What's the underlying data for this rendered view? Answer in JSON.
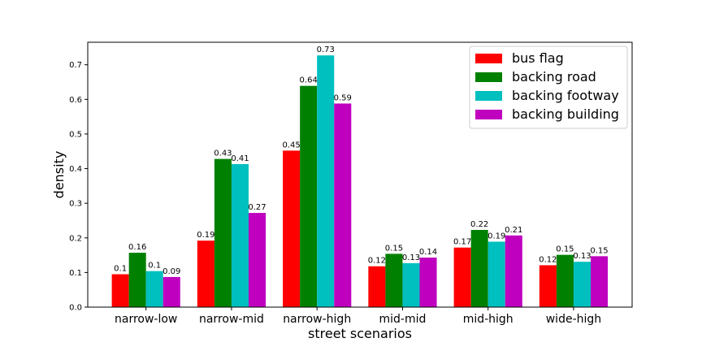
{
  "chart_data": {
    "type": "bar",
    "xlabel": "street scenarios",
    "ylabel": "density",
    "ylim": [
      0,
      0.765
    ],
    "yticks": [
      "0.0",
      "0.1",
      "0.2",
      "0.3",
      "0.4",
      "0.5",
      "0.6",
      "0.7"
    ],
    "grid": false,
    "legend_position": "top-right",
    "categories": [
      "narrow-low",
      "narrow-mid",
      "narrow-high",
      "mid-mid",
      "mid-high",
      "wide-high"
    ],
    "series": [
      {
        "name": "bus flag",
        "color": "#ff0000",
        "values": [
          0.095,
          0.192,
          0.452,
          0.118,
          0.172,
          0.121
        ],
        "labels": [
          "0.1",
          "0.19",
          "0.45",
          "0.12",
          "0.17",
          "0.12"
        ]
      },
      {
        "name": "backing road",
        "color": "#008000",
        "values": [
          0.157,
          0.428,
          0.639,
          0.154,
          0.223,
          0.151
        ],
        "labels": [
          "0.16",
          "0.43",
          "0.64",
          "0.15",
          "0.22",
          "0.15"
        ]
      },
      {
        "name": "backing footway",
        "color": "#00bfbf",
        "values": [
          0.104,
          0.413,
          0.727,
          0.127,
          0.189,
          0.131
        ],
        "labels": [
          "0.1",
          "0.41",
          "0.73",
          "0.13",
          "0.19",
          "0.13"
        ]
      },
      {
        "name": "backing building",
        "color": "#bf00bf",
        "values": [
          0.087,
          0.272,
          0.588,
          0.143,
          0.207,
          0.147
        ],
        "labels": [
          "0.09",
          "0.27",
          "0.59",
          "0.14",
          "0.21",
          "0.15"
        ]
      }
    ]
  }
}
